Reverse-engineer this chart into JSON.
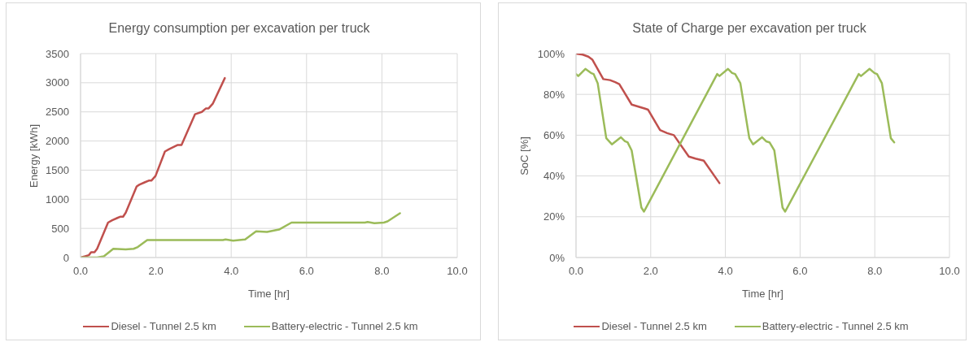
{
  "chart_data": [
    {
      "type": "line",
      "title": "Energy consumption per excavation per truck",
      "xlabel": "Time [hr]",
      "ylabel": "Energy [kWh]",
      "xlim": [
        0,
        10
      ],
      "xticks": [
        {
          "value": 0,
          "label": "0.0"
        },
        {
          "value": 2,
          "label": "2.0"
        },
        {
          "value": 4,
          "label": "4.0"
        },
        {
          "value": 6,
          "label": "6.0"
        },
        {
          "value": 8,
          "label": "8.0"
        },
        {
          "value": 10,
          "label": "10.0"
        }
      ],
      "ylim": [
        0,
        3500
      ],
      "yticks": [
        0,
        500,
        1000,
        1500,
        2000,
        2500,
        3000,
        3500
      ],
      "grid": true,
      "legend": "bottom",
      "series": [
        {
          "name": "Diesel - Tunnel 2.5 km",
          "color": "#c0504d",
          "x": [
            0,
            0.12,
            0.22,
            0.28,
            0.37,
            0.44,
            0.73,
            0.84,
            0.98,
            1.05,
            1.13,
            1.2,
            1.49,
            1.56,
            1.7,
            1.81,
            1.88,
            1.99,
            2.24,
            2.35,
            2.57,
            2.68,
            3.04,
            3.22,
            3.33,
            3.4,
            3.51,
            3.83
          ],
          "values": [
            0,
            20,
            40,
            90,
            90,
            150,
            600,
            640,
            680,
            700,
            700,
            770,
            1220,
            1250,
            1290,
            1320,
            1320,
            1400,
            1820,
            1860,
            1930,
            1930,
            2460,
            2500,
            2560,
            2560,
            2640,
            3080
          ]
        },
        {
          "name": "Battery-electric - Tunnel 2.5 km",
          "color": "#9bbb59",
          "x": [
            0,
            0.44,
            0.62,
            0.87,
            1.2,
            1.41,
            1.52,
            1.77,
            3.78,
            3.85,
            4.05,
            4.37,
            4.66,
            4.95,
            5.27,
            5.6,
            7.55,
            7.62,
            7.8,
            8.05,
            8.15,
            8.48
          ],
          "values": [
            0,
            0,
            20,
            150,
            140,
            150,
            180,
            300,
            300,
            310,
            290,
            310,
            450,
            440,
            480,
            600,
            600,
            610,
            590,
            600,
            620,
            760
          ]
        }
      ]
    },
    {
      "type": "line",
      "title": "State of Charge per excavation per truck",
      "xlabel": "Time [hr]",
      "ylabel": "SoC [%]",
      "xlim": [
        0,
        10
      ],
      "xticks": [
        {
          "value": 0,
          "label": "0.0"
        },
        {
          "value": 2,
          "label": "2.0"
        },
        {
          "value": 4,
          "label": "4.0"
        },
        {
          "value": 6,
          "label": "6.0"
        },
        {
          "value": 8,
          "label": "8.0"
        },
        {
          "value": 10,
          "label": "10.0"
        }
      ],
      "ylim": [
        0,
        100
      ],
      "yticks": [
        {
          "value": 0,
          "label": "0%"
        },
        {
          "value": 20,
          "label": "20%"
        },
        {
          "value": 40,
          "label": "40%"
        },
        {
          "value": 60,
          "label": "60%"
        },
        {
          "value": 80,
          "label": "80%"
        },
        {
          "value": 100,
          "label": "100%"
        }
      ],
      "grid": true,
      "legend": "bottom",
      "series": [
        {
          "name": "Diesel - Tunnel 2.5 km",
          "color": "#c0504d",
          "x": [
            0,
            0.18,
            0.33,
            0.44,
            0.73,
            0.91,
            1.05,
            1.16,
            1.49,
            1.67,
            1.85,
            1.93,
            2.25,
            2.44,
            2.62,
            3.02,
            3.2,
            3.42,
            3.84
          ],
          "values": [
            100,
            99.5,
            98.5,
            97,
            87.5,
            87,
            86,
            85,
            75,
            74,
            73,
            72.5,
            62.5,
            61,
            60,
            49.5,
            48.5,
            47.5,
            36.5
          ]
        },
        {
          "name": "Battery-electric - Tunnel 2.5 km",
          "color": "#9bbb59",
          "x": [
            0,
            0.06,
            0.25,
            0.4,
            0.47,
            0.58,
            0.81,
            0.96,
            1.2,
            1.31,
            1.38,
            1.49,
            1.75,
            1.82,
            3.78,
            3.84,
            4.07,
            4.18,
            4.26,
            4.4,
            4.64,
            4.74,
            4.98,
            5.09,
            5.18,
            5.31,
            5.53,
            5.6,
            7.57,
            7.63,
            7.86,
            7.99,
            8.06,
            8.19,
            8.43,
            8.52
          ],
          "values": [
            90,
            89,
            92.5,
            90.5,
            90,
            85.5,
            58.5,
            55.5,
            59,
            57,
            56.5,
            52.5,
            24.5,
            22.5,
            90,
            89,
            92.5,
            90.5,
            90,
            85.5,
            58.5,
            55.5,
            59,
            57,
            56.5,
            52.5,
            24.5,
            22.5,
            90,
            89,
            92.5,
            90.5,
            90,
            85.5,
            58.5,
            56.5
          ]
        }
      ]
    }
  ]
}
